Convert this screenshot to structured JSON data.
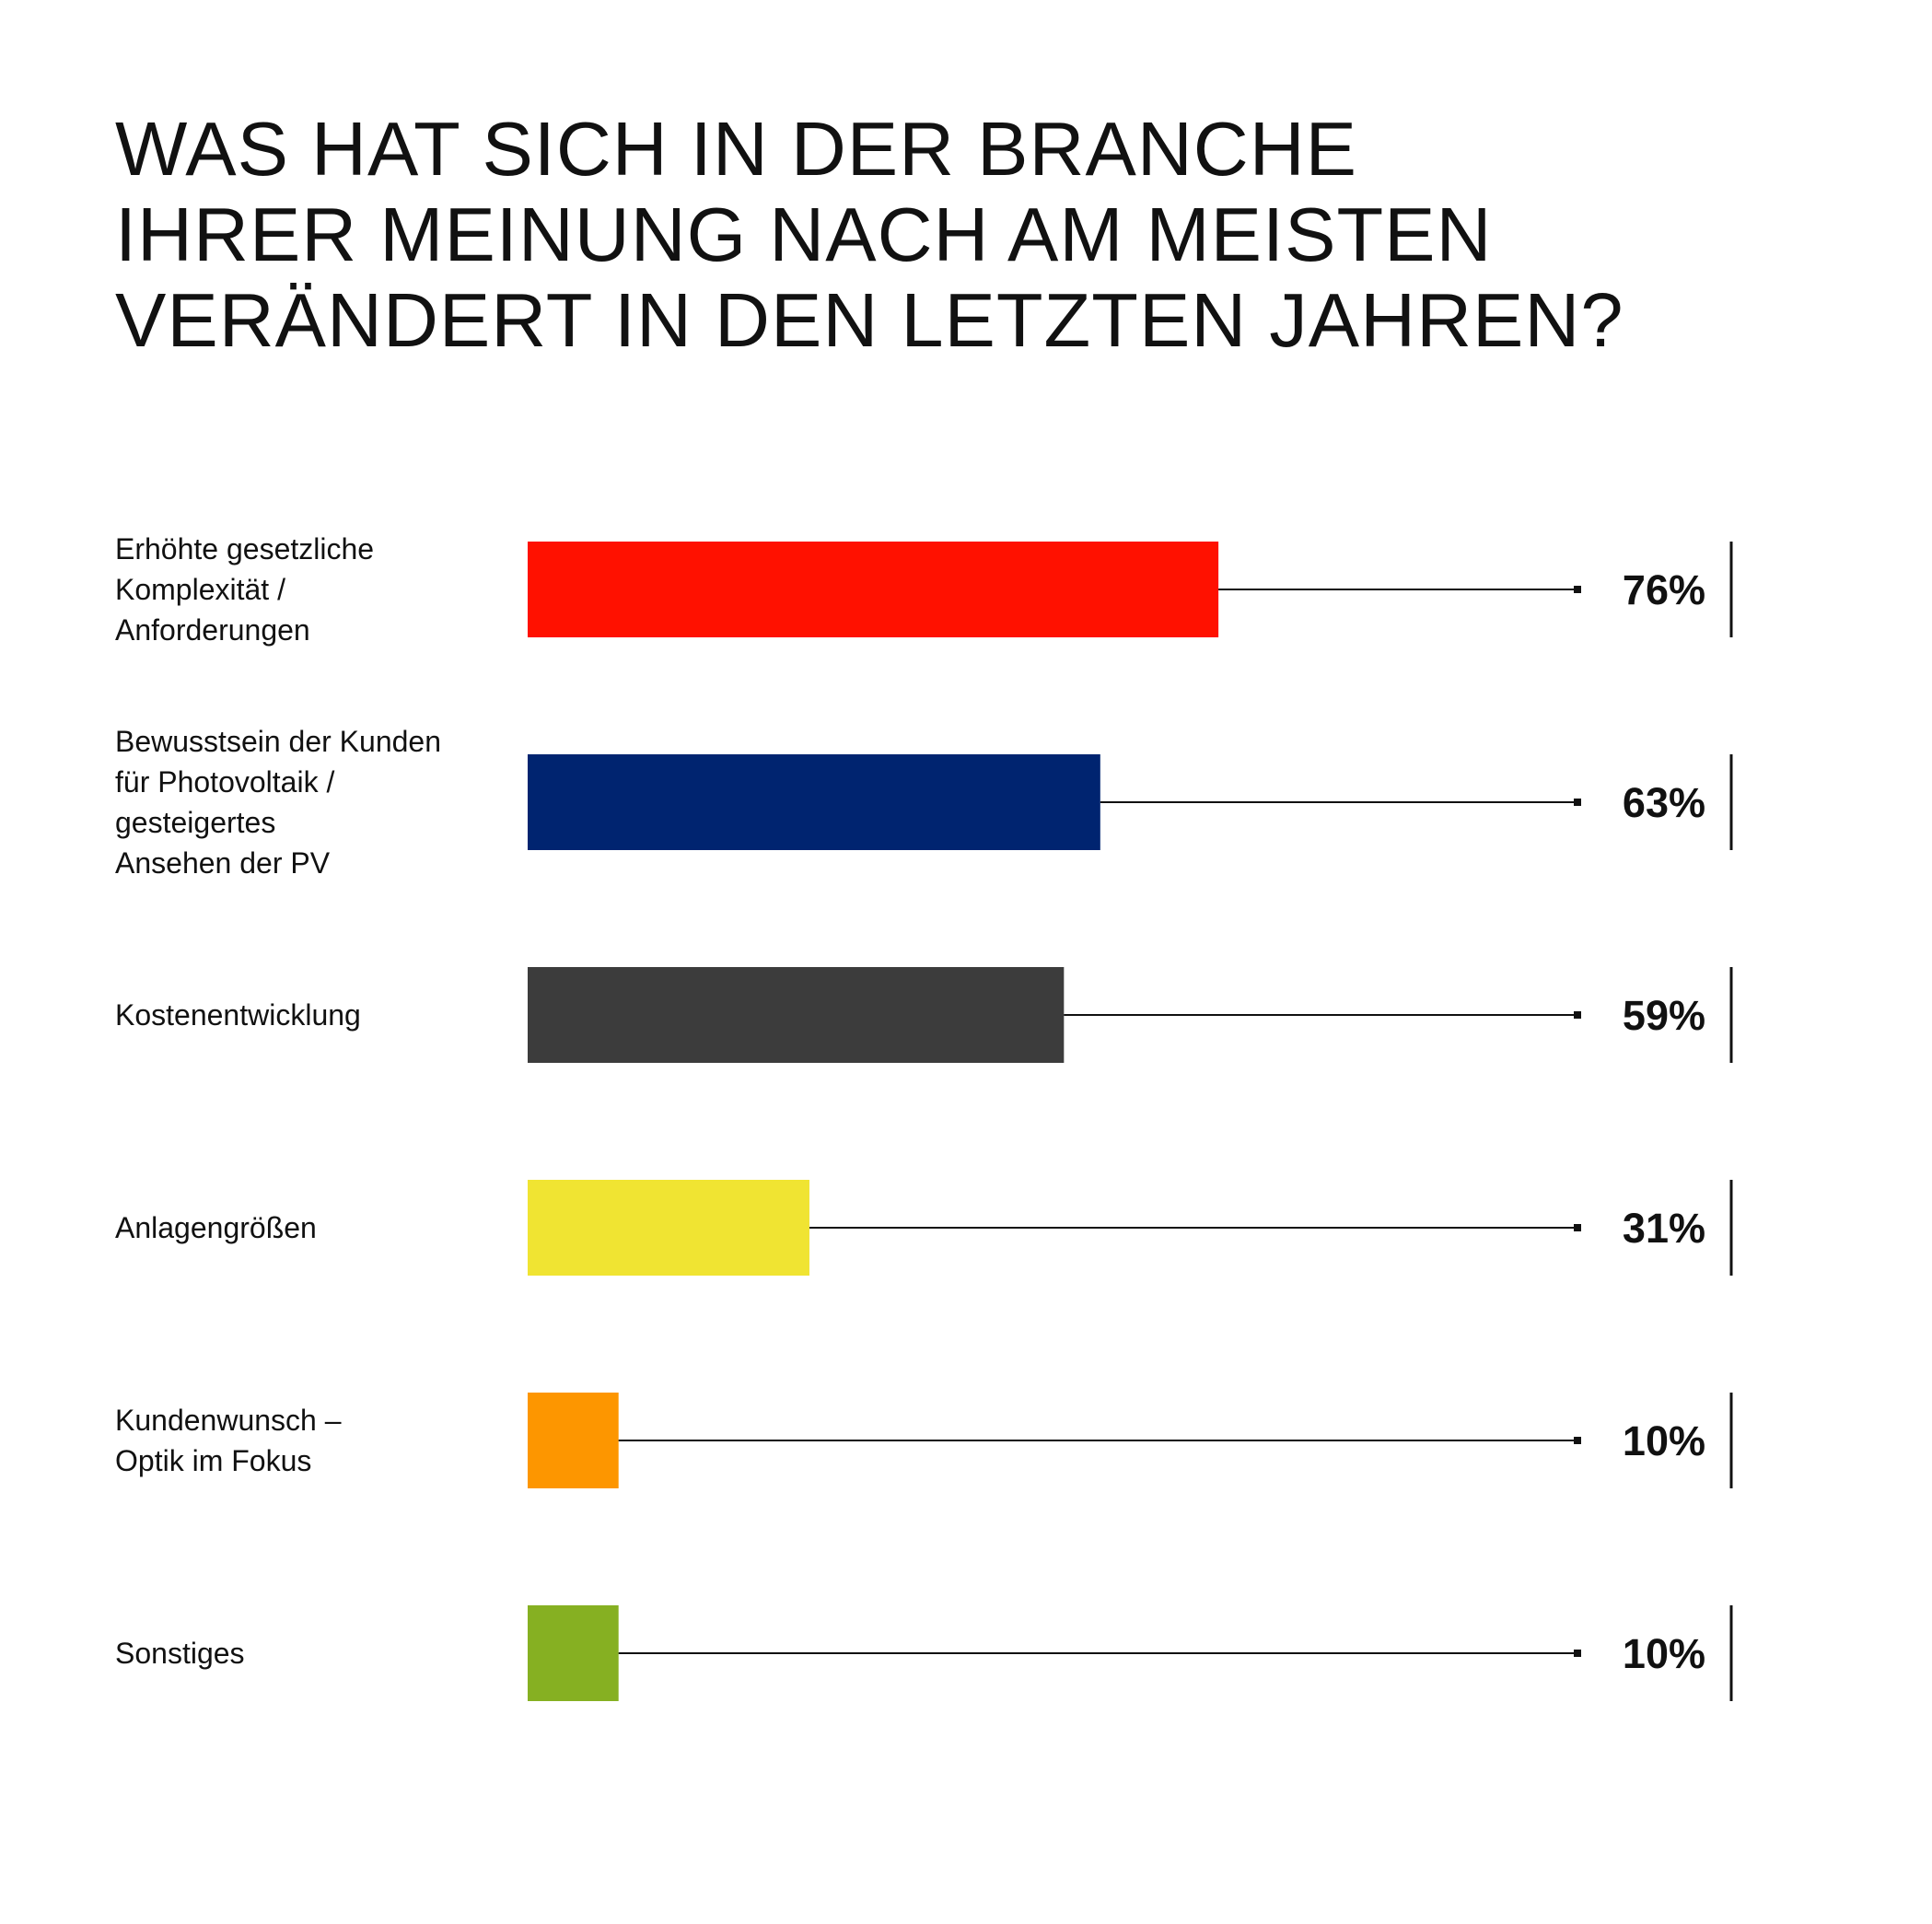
{
  "title_lines": [
    "WAS HAT SICH IN DER BRANCHE",
    "IHRER MEINUNG NACH AM MEISTEN",
    "VERÄNDERT IN DEN LETZTEN JAHREN?"
  ],
  "chart_data": {
    "type": "bar",
    "orientation": "horizontal",
    "title": "WAS HAT SICH IN DER BRANCHE IHRER MEINUNG NACH AM MEISTEN VERÄNDERT IN DEN LETZTEN JAHREN?",
    "xlabel": "",
    "ylabel": "",
    "xlim": [
      0,
      100
    ],
    "grid": false,
    "legend": "none",
    "unit": "%",
    "categories": [
      "Erhöhte gesetzliche Komplexität / Anforderungen",
      "Bewusstsein der Kunden für Photovoltaik / gesteigertes Ansehen der PV",
      "Kostenentwicklung",
      "Anlagengrößen",
      "Kundenwunsch – Optik im Fokus",
      "Sonstiges"
    ],
    "category_lines": [
      [
        "Erhöhte gesetzliche",
        "Komplexität /",
        "Anforderungen"
      ],
      [
        "Bewusstsein der Kunden",
        "für Photovoltaik /",
        "gesteigertes",
        "Ansehen der PV"
      ],
      [
        "Kostenentwicklung"
      ],
      [
        "Anlagengrößen"
      ],
      [
        "Kundenwunsch –",
        "Optik im Fokus"
      ],
      [
        "Sonstiges"
      ]
    ],
    "values": [
      76,
      63,
      59,
      31,
      10,
      10
    ],
    "value_labels": [
      "76%",
      "63%",
      "59%",
      "31%",
      "10%",
      "10%"
    ],
    "colors": [
      "#ff1100",
      "#002470",
      "#3c3c3c",
      "#f0e432",
      "#fd9600",
      "#86b022"
    ]
  }
}
